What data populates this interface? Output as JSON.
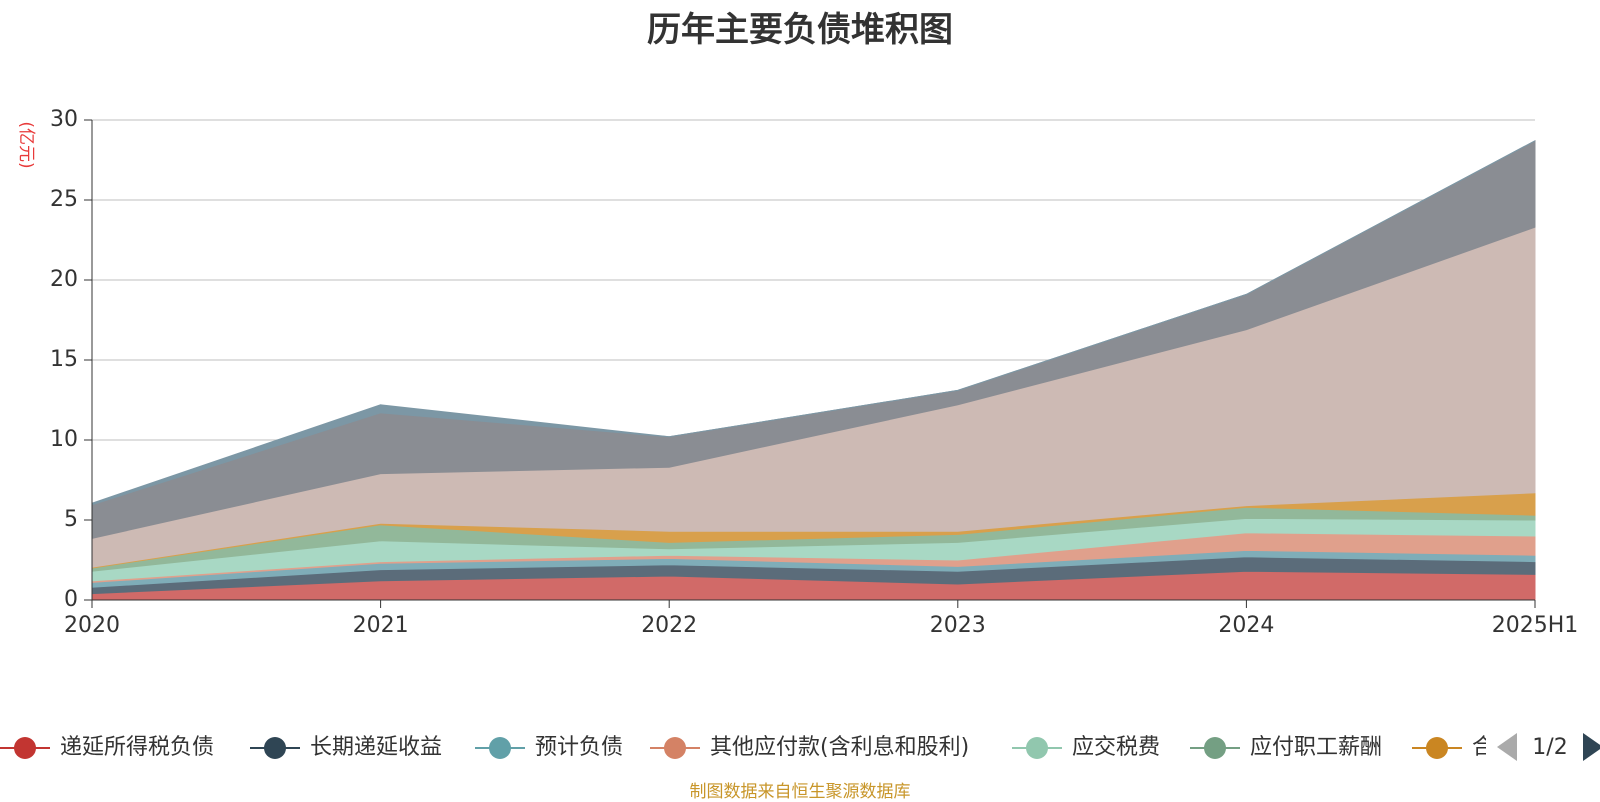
{
  "source_note": "制图数据来自恒生聚源数据库",
  "legend_pager": {
    "text": "1/2"
  },
  "colors": {
    "递延所得税负债": "#d16a68",
    "长期递延收益": "#5b6c7a",
    "预计负债": "#7fadb8",
    "其他应付款(含利息和股利)": "#e0a08c",
    "应交税费": "#a8d8c4",
    "应付职工薪酬": "#92b89a",
    "合同负债": "#d8a04c",
    "series8": "#cdbab4",
    "series9": "#8a8d93",
    "series10": "#7c97a5",
    "legend_marker": {
      "递延所得税负债": "#c23531",
      "长期递延收益": "#2f4554",
      "预计负债": "#61a0a8",
      "其他应付款(含利息和股利)": "#d48265",
      "应交税费": "#91c7ae",
      "应付职工薪酬": "#749f83",
      "合同负债": "#ca8622"
    }
  },
  "chart_data": {
    "type": "area",
    "stacked": true,
    "title": "历年主要负债堆积图",
    "ylabel": "(亿元)",
    "ylim": [
      0,
      30
    ],
    "yticks": [
      0,
      5,
      10,
      15,
      20,
      25,
      30
    ],
    "grid": true,
    "legend_position": "bottom",
    "x": [
      "2020",
      "2021",
      "2022",
      "2023",
      "2024",
      "2025H1"
    ],
    "series": [
      {
        "name": "递延所得税负债",
        "values": [
          0.4,
          1.2,
          1.5,
          1.0,
          1.8,
          1.6
        ]
      },
      {
        "name": "长期递延收益",
        "values": [
          0.4,
          0.7,
          0.7,
          0.8,
          0.9,
          0.8
        ]
      },
      {
        "name": "预计负债",
        "values": [
          0.3,
          0.4,
          0.4,
          0.3,
          0.4,
          0.4
        ]
      },
      {
        "name": "其他应付款(含利息和股利)",
        "values": [
          0.1,
          0.1,
          0.2,
          0.4,
          1.1,
          1.2
        ]
      },
      {
        "name": "应交税费",
        "values": [
          0.6,
          1.3,
          0.4,
          1.1,
          0.9,
          1.0
        ]
      },
      {
        "name": "应付职工薪酬",
        "values": [
          0.2,
          1.0,
          0.4,
          0.5,
          0.7,
          0.3
        ]
      },
      {
        "name": "合同负债",
        "values": [
          0.05,
          0.1,
          0.7,
          0.2,
          0.1,
          1.4
        ]
      },
      {
        "values": [
          1.8,
          3.1,
          4.0,
          7.9,
          11.0,
          16.6
        ]
      },
      {
        "values": [
          2.1,
          3.8,
          1.9,
          0.9,
          2.2,
          5.4
        ]
      },
      {
        "values": [
          0.1,
          0.5,
          0.0,
          0.0,
          0.0,
          0.0
        ]
      }
    ]
  }
}
